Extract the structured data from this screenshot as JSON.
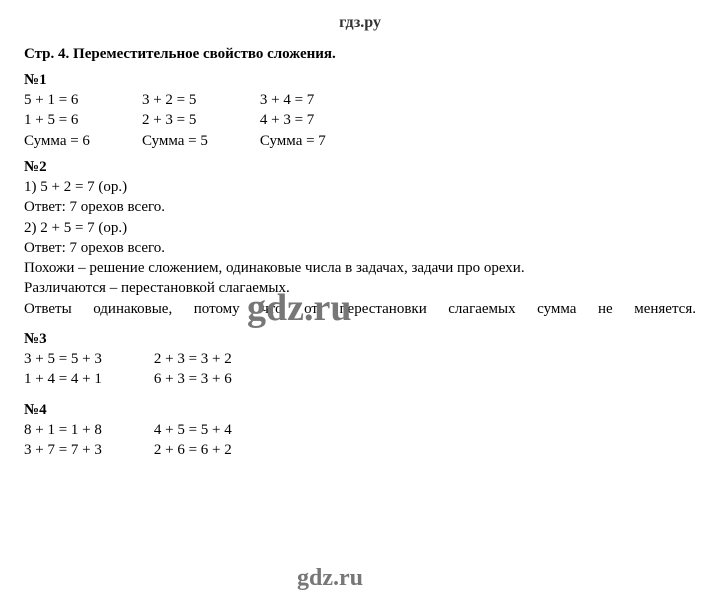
{
  "header": {
    "logo_text": "гдз.ру"
  },
  "watermarks": {
    "mid": "gdz.ru",
    "bottom": "gdz.ru"
  },
  "page": {
    "title": "Стр. 4. Переместительное свойство сложения."
  },
  "task1": {
    "num": "№1",
    "col1": {
      "r1": "5 + 1 = 6",
      "r2": "1 + 5 = 6",
      "r3": "Сумма = 6"
    },
    "col2": {
      "r1": "3 + 2 = 5",
      "r2": "2 + 3 = 5",
      "r3": "Сумма = 5"
    },
    "col3": {
      "r1": "3 + 4 = 7",
      "r2": "4 + 3 = 7",
      "r3": "Сумма = 7"
    }
  },
  "task2": {
    "num": "№2",
    "l1": "1) 5 + 2 = 7 (ор.)",
    "l2": "Ответ: 7 орехов всего.",
    "l3": "2) 2 + 5 = 7 (ор.)",
    "l4": "Ответ: 7 орехов всего.",
    "l5": "Похожи – решение сложением, одинаковые числа в задачах, задачи про орехи.",
    "l6": "Различаются – перестановкой слагаемых.",
    "l7": "Ответы одинаковые, потому что от перестановки слагаемых сумма не меняется."
  },
  "task3": {
    "num": "№3",
    "col1": {
      "r1": "3 + 5 = 5 + 3",
      "r2": "1 + 4 = 4 + 1"
    },
    "col2": {
      "r1": "2 + 3 = 3 + 2",
      "r2": "6 + 3 = 3 + 6"
    }
  },
  "task4": {
    "num": "№4",
    "col1": {
      "r1": "8 + 1 = 1 + 8",
      "r2": "3 + 7 = 7 + 3"
    },
    "col2": {
      "r1": "4 + 5 = 5 + 4",
      "r2": "2 + 6 = 6 + 2"
    }
  }
}
